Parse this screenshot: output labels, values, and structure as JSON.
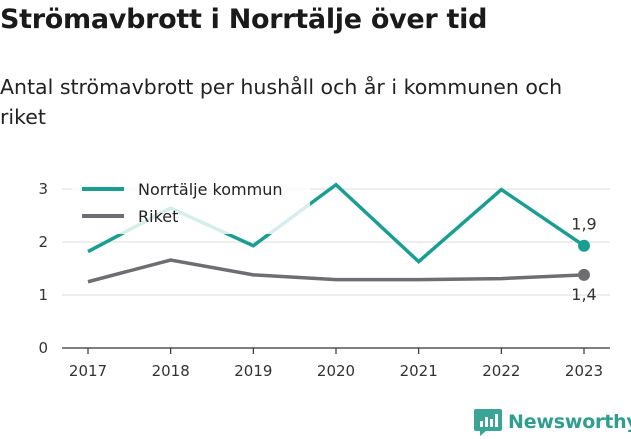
{
  "title": "Strömavbrott i Norrtälje över tid",
  "subtitle": "Antal strömavbrott per hushåll och år i kommunen och riket",
  "brand": {
    "name": "Newsworthy",
    "icon": "newsworthy-logo-icon",
    "color": "#2f9e8f"
  },
  "chart_data": {
    "type": "line",
    "categories": [
      "2017",
      "2018",
      "2019",
      "2020",
      "2021",
      "2022",
      "2023"
    ],
    "yticks": [
      "0",
      "1",
      "2",
      "3"
    ],
    "ylim": [
      0,
      3.2
    ],
    "grid": true,
    "legend_placement": "top-left",
    "series": [
      {
        "name": "Norrtälje kommun",
        "color": "#1a9e92",
        "values": [
          1.82,
          2.64,
          1.93,
          3.08,
          1.63,
          2.99,
          1.93
        ],
        "end_label": "1,9"
      },
      {
        "name": "Riket",
        "color": "#6e6d72",
        "values": [
          1.25,
          1.66,
          1.38,
          1.29,
          1.29,
          1.31,
          1.38
        ],
        "end_label": "1,4"
      }
    ]
  }
}
